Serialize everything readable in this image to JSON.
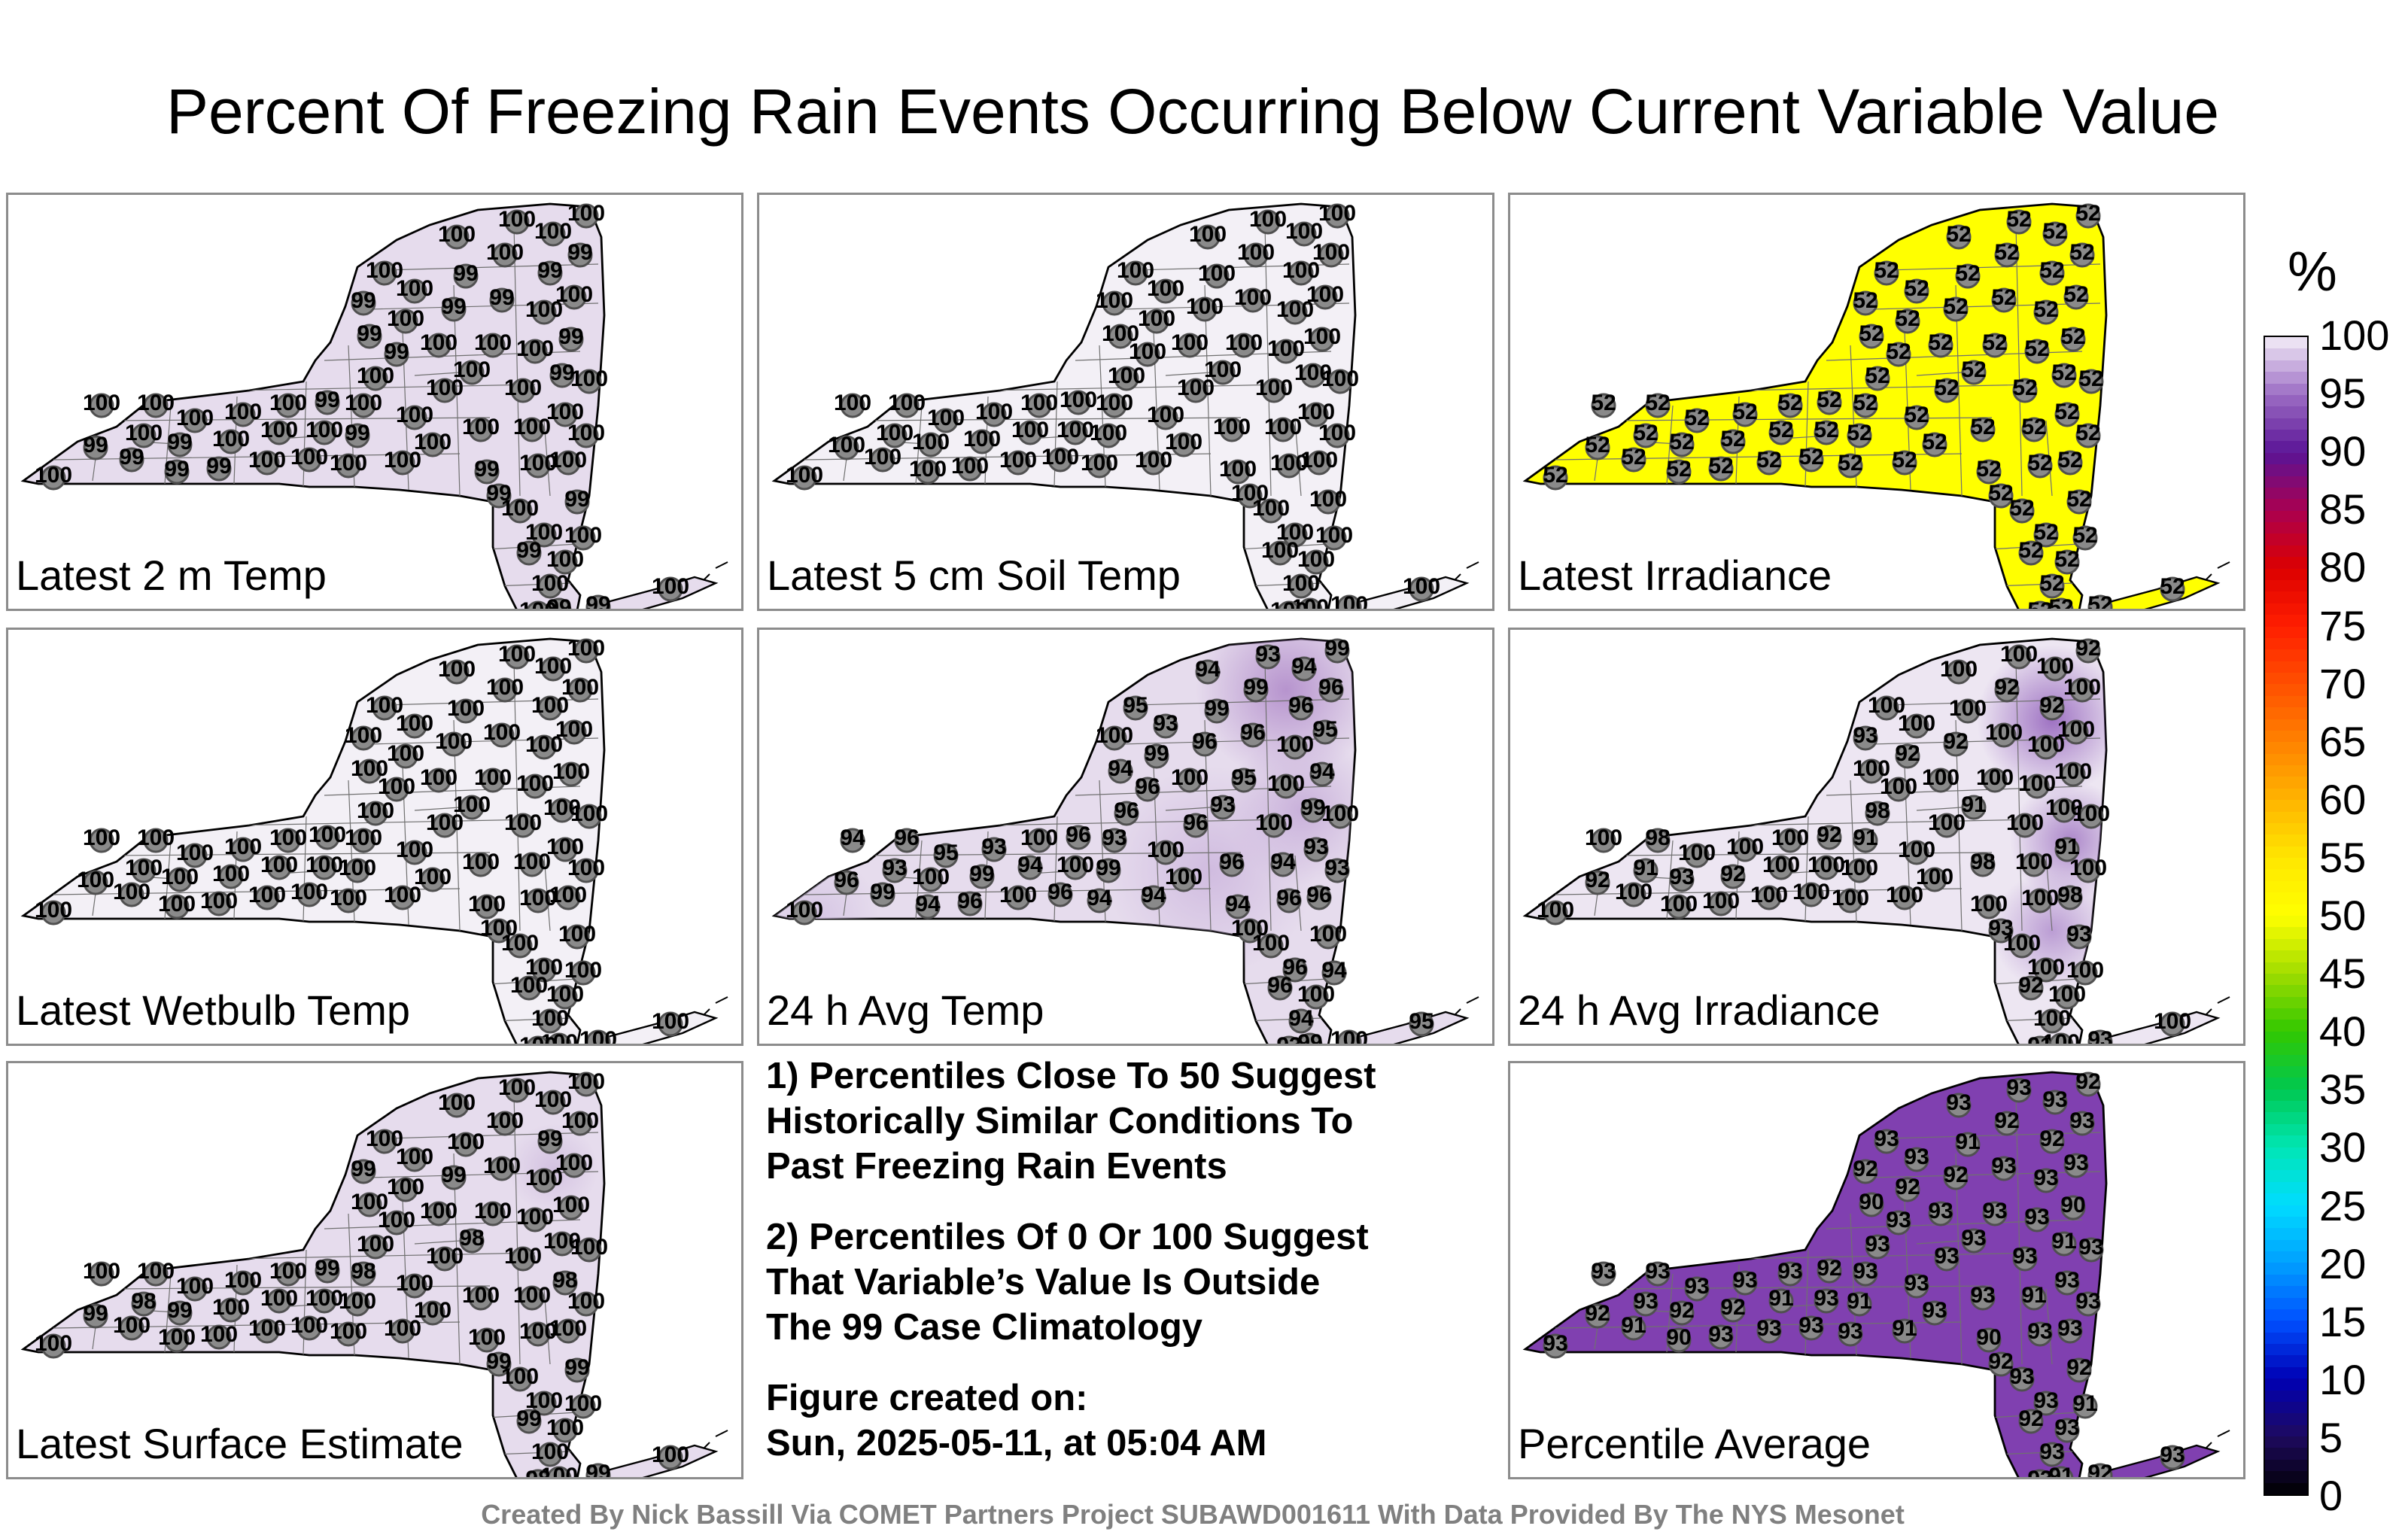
{
  "title": "Percent Of Freezing Rain Events Occurring Below Current Variable Value",
  "panels": [
    {
      "label": "Latest 2 m Temp",
      "fill": "#e6dced",
      "station_values": [
        "100",
        "99",
        "100",
        "99",
        "100",
        "100",
        "99",
        "99",
        "100",
        "99",
        "100",
        "100",
        "100",
        "100",
        "100",
        "100"
      ]
    },
    {
      "label": "Latest 5 cm Soil Temp",
      "fill": "#f3f0f6",
      "station_values": [
        "100"
      ]
    },
    {
      "label": "Latest Irradiance",
      "fill": "#ffff00",
      "station_values": [
        "52"
      ]
    },
    {
      "label": "Latest Wetbulb Temp",
      "fill": "#f3f0f6",
      "station_values": [
        "100"
      ]
    },
    {
      "label": "24 h Avg Temp",
      "fill": "#e6dced",
      "station_values": [
        "100",
        "96",
        "94",
        "99",
        "93",
        "96",
        "94",
        "100",
        "95",
        "96",
        "99",
        "93",
        "100",
        "94",
        "100",
        "96"
      ]
    },
    {
      "label": "24 h Avg Irradiance",
      "fill": "#ede6f2",
      "station_values": [
        "100",
        "92",
        "100",
        "100",
        "91",
        "98",
        "100",
        "93",
        "100",
        "100",
        "92",
        "100",
        "100",
        "100",
        "100",
        "100"
      ]
    },
    {
      "label": "Latest Surface Estimate",
      "fill": "#e6dced",
      "station_values": [
        "100",
        "99",
        "100",
        "100",
        "98",
        "100",
        "100",
        "99",
        "100",
        "100",
        "100",
        "100",
        "100",
        "100",
        "100",
        "100"
      ]
    },
    {
      "label": "Percentile Average",
      "fill": "#8040b0",
      "station_values": [
        "93",
        "92",
        "93",
        "91",
        "93",
        "93",
        "90",
        "92",
        "93",
        "93",
        "92",
        "93",
        "93",
        "91",
        "93",
        "93"
      ]
    }
  ],
  "notes": {
    "line1": "1) Percentiles Close To 50 Suggest",
    "line2": "Historically Similar Conditions To",
    "line3": "Past Freezing Rain Events",
    "line4": "2) Percentiles Of 0 Or 100 Suggest",
    "line5": "That Variable’s Value Is Outside",
    "line6": "The 99 Case Climatology",
    "line7": "Figure created on:",
    "line8": "Sun, 2025-05-11, at 05:04 AM"
  },
  "colorbar": {
    "unit": "%",
    "ticks": [
      "100",
      "95",
      "90",
      "85",
      "80",
      "75",
      "70",
      "65",
      "60",
      "55",
      "50",
      "45",
      "40",
      "35",
      "30",
      "25",
      "20",
      "15",
      "10",
      "5",
      "0"
    ]
  },
  "credit": "Created By Nick Bassill Via COMET Partners Project SUBAWD001611 With Data Provided By The NYS Mesonet"
}
